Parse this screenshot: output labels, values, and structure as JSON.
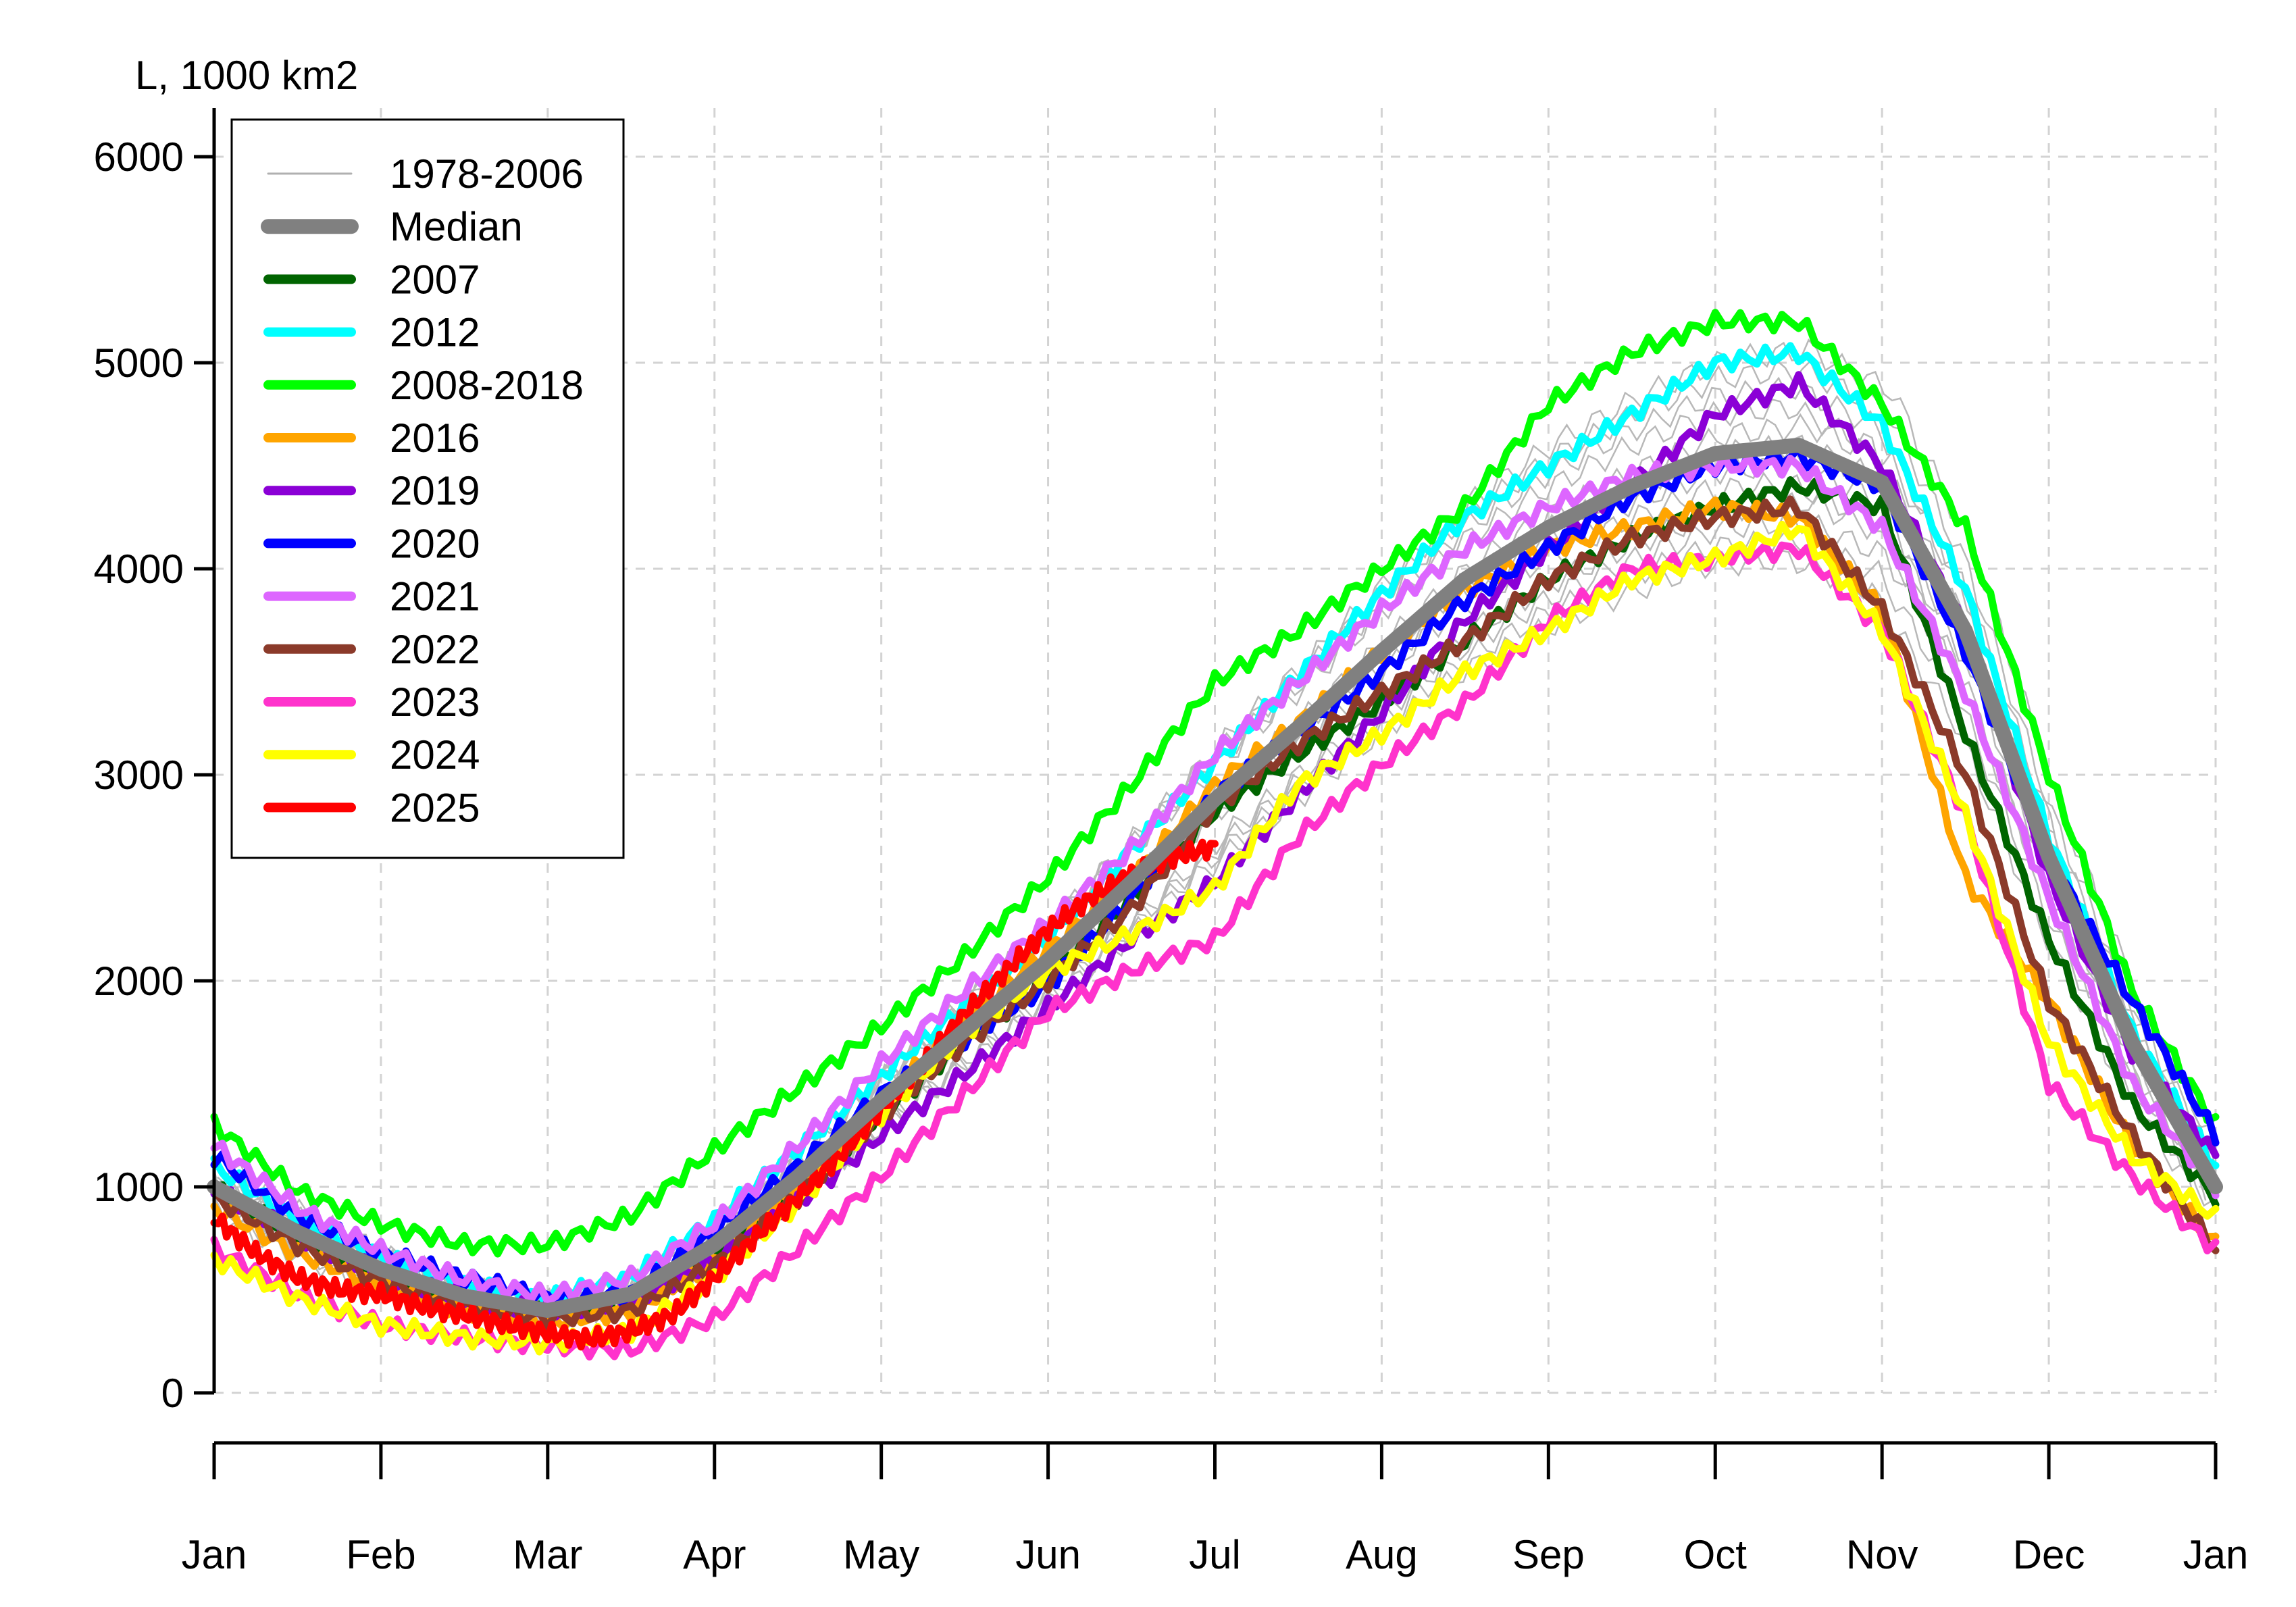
{
  "chart_data": {
    "type": "line",
    "ylabel": "L, 1000 km2",
    "ylim": [
      0,
      6000
    ],
    "yticks": [
      0,
      1000,
      2000,
      3000,
      4000,
      5000,
      6000
    ],
    "xticks": [
      "Jan",
      "Feb",
      "Mar",
      "Apr",
      "May",
      "Jun",
      "Jul",
      "Aug",
      "Sep",
      "Oct",
      "Nov",
      "Dec",
      "Jan"
    ],
    "grid": true,
    "legend_position": "top-left",
    "legend": [
      {
        "label": "1978-2006",
        "color": "#b0b0b0",
        "style": "thin"
      },
      {
        "label": "Median",
        "color": "#808080",
        "style": "thick"
      },
      {
        "label": "2007",
        "color": "#006400",
        "style": "medium"
      },
      {
        "label": "2012",
        "color": "#00ffff",
        "style": "medium"
      },
      {
        "label": "2008-2018",
        "color": "#00ff00",
        "style": "medium"
      },
      {
        "label": "2016",
        "color": "#ffa500",
        "style": "medium"
      },
      {
        "label": "2019",
        "color": "#8b00d6",
        "style": "medium"
      },
      {
        "label": "2020",
        "color": "#0000ff",
        "style": "medium"
      },
      {
        "label": "2021",
        "color": "#dd66ff",
        "style": "medium"
      },
      {
        "label": "2022",
        "color": "#8b3a2a",
        "style": "medium"
      },
      {
        "label": "2023",
        "color": "#ff33cc",
        "style": "medium"
      },
      {
        "label": "2024",
        "color": "#ffff00",
        "style": "medium"
      },
      {
        "label": "2025",
        "color": "#ff0000",
        "style": "medium"
      }
    ],
    "x_unit": "month (0 = Jan 1, 12 = next Jan 1)",
    "series": [
      {
        "name": "Median",
        "color": "#808080",
        "x": [
          0,
          0.5,
          1,
          1.5,
          2,
          2.5,
          3,
          3.5,
          4,
          4.5,
          5,
          5.5,
          6,
          6.5,
          7,
          7.5,
          8,
          8.5,
          9,
          9.5,
          10,
          10.5,
          11,
          11.5,
          12
        ],
        "values": [
          1000,
          780,
          600,
          470,
          400,
          480,
          720,
          1050,
          1420,
          1760,
          2100,
          2480,
          2880,
          3230,
          3600,
          3950,
          4200,
          4400,
          4560,
          4600,
          4420,
          3700,
          2600,
          1700,
          1000
        ]
      },
      {
        "name": "2007",
        "color": "#006400",
        "x": [
          0,
          0.5,
          1,
          1.5,
          2,
          2.5,
          3,
          3.5,
          4,
          4.5,
          5,
          5.5,
          6,
          6.5,
          7,
          7.5,
          8,
          8.5,
          9,
          9.5,
          10,
          10.5,
          11,
          11.5,
          12
        ],
        "values": [
          1000,
          760,
          570,
          440,
          380,
          430,
          650,
          980,
          1350,
          1700,
          2020,
          2400,
          2820,
          3100,
          3350,
          3650,
          3950,
          4150,
          4300,
          4400,
          4300,
          3200,
          2200,
          1400,
          950
        ]
      },
      {
        "name": "2012",
        "color": "#00ffff",
        "x": [
          0,
          0.5,
          1,
          1.5,
          2,
          2.5,
          3,
          3.5,
          4,
          4.5,
          5,
          5.5,
          6,
          6.5,
          7,
          7.5,
          8,
          8.5,
          9,
          9.5,
          10,
          10.5,
          11,
          11.5,
          12
        ],
        "values": [
          1100,
          840,
          660,
          520,
          460,
          560,
          840,
          1180,
          1540,
          1880,
          2200,
          2640,
          3060,
          3480,
          3880,
          4250,
          4500,
          4750,
          5000,
          5050,
          4700,
          3900,
          2700,
          1750,
          1100
        ]
      },
      {
        "name": "2008-2018",
        "color": "#00ff00",
        "x": [
          0,
          0.5,
          1,
          1.5,
          2,
          2.5,
          3,
          3.5,
          4,
          4.5,
          5,
          5.5,
          6,
          6.5,
          7,
          7.5,
          8,
          8.5,
          9,
          9.5,
          10,
          10.5,
          11,
          11.5,
          12
        ],
        "values": [
          1300,
          980,
          820,
          720,
          720,
          860,
          1180,
          1480,
          1780,
          2120,
          2500,
          2950,
          3450,
          3700,
          4000,
          4300,
          4800,
          5050,
          5200,
          5200,
          4800,
          4200,
          3000,
          1950,
          1300
        ]
      },
      {
        "name": "2016",
        "color": "#ffa500",
        "x": [
          0,
          0.5,
          1,
          1.5,
          2,
          2.5,
          3,
          3.5,
          4,
          4.5,
          5,
          5.5,
          6,
          6.5,
          7,
          7.5,
          8,
          8.5,
          9,
          9.5,
          10,
          10.5,
          11,
          11.5,
          12
        ],
        "values": [
          900,
          680,
          520,
          400,
          340,
          400,
          640,
          1010,
          1420,
          1800,
          2150,
          2500,
          2950,
          3250,
          3600,
          3900,
          4100,
          4200,
          4300,
          4250,
          3800,
          2500,
          1900,
          1200,
          720
        ]
      },
      {
        "name": "2019",
        "color": "#8b00d6",
        "x": [
          0,
          0.5,
          1,
          1.5,
          2,
          2.5,
          3,
          3.5,
          4,
          4.5,
          5,
          5.5,
          6,
          6.5,
          7,
          7.5,
          8,
          8.5,
          9,
          9.5,
          10,
          10.5,
          11,
          11.5,
          12
        ],
        "values": [
          1000,
          760,
          580,
          460,
          400,
          450,
          640,
          920,
          1250,
          1550,
          1870,
          2200,
          2480,
          2900,
          3300,
          3750,
          4100,
          4400,
          4750,
          4900,
          4500,
          3700,
          2500,
          1650,
          1150
        ]
      },
      {
        "name": "2020",
        "color": "#0000ff",
        "x": [
          0,
          0.5,
          1,
          1.5,
          2,
          2.5,
          3,
          3.5,
          4,
          4.5,
          5,
          5.5,
          6,
          6.5,
          7,
          7.5,
          8,
          8.5,
          9,
          9.5,
          10,
          10.5,
          11,
          11.5,
          12
        ],
        "values": [
          1150,
          860,
          680,
          560,
          460,
          480,
          780,
          1100,
          1450,
          1720,
          1980,
          2400,
          2900,
          3200,
          3500,
          3850,
          4100,
          4350,
          4500,
          4550,
          4400,
          3600,
          2600,
          1900,
          1250
        ]
      },
      {
        "name": "2021",
        "color": "#dd66ff",
        "x": [
          0,
          0.5,
          1,
          1.5,
          2,
          2.5,
          3,
          3.5,
          4,
          4.5,
          5,
          5.5,
          6,
          6.5,
          7,
          7.5,
          8,
          8.5,
          9,
          9.5,
          10,
          10.5,
          11,
          11.5,
          12
        ],
        "values": [
          1200,
          900,
          690,
          550,
          470,
          560,
          820,
          1200,
          1600,
          1950,
          2280,
          2640,
          3100,
          3450,
          3800,
          4100,
          4300,
          4450,
          4500,
          4500,
          4200,
          3400,
          2400,
          1500,
          1000
        ]
      },
      {
        "name": "2022",
        "color": "#8b3a2a",
        "x": [
          0,
          0.5,
          1,
          1.5,
          2,
          2.5,
          3,
          3.5,
          4,
          4.5,
          5,
          5.5,
          6,
          6.5,
          7,
          7.5,
          8,
          8.5,
          9,
          9.5,
          10,
          10.5,
          11,
          11.5,
          12
        ],
        "values": [
          950,
          720,
          540,
          420,
          360,
          400,
          620,
          950,
          1350,
          1700,
          2000,
          2350,
          2850,
          3150,
          3400,
          3650,
          3950,
          4150,
          4250,
          4300,
          3800,
          3000,
          1900,
          1250,
          700
        ]
      },
      {
        "name": "2023",
        "color": "#ff33cc",
        "x": [
          0,
          0.5,
          1,
          1.5,
          2,
          2.5,
          3,
          3.5,
          4,
          4.5,
          5,
          5.5,
          6,
          6.5,
          7,
          7.5,
          8,
          8.5,
          9,
          9.5,
          10,
          10.5,
          11,
          11.5,
          12
        ],
        "values": [
          700,
          480,
          330,
          270,
          230,
          210,
          360,
          700,
          1050,
          1450,
          1850,
          2050,
          2200,
          2700,
          3050,
          3350,
          3750,
          4000,
          4050,
          4100,
          3700,
          2800,
          1500,
          1050,
          700
        ]
      },
      {
        "name": "2024",
        "color": "#ffff00",
        "x": [
          0,
          0.5,
          1,
          1.5,
          2,
          2.5,
          3,
          3.5,
          4,
          4.5,
          5,
          5.5,
          6,
          6.5,
          7,
          7.5,
          8,
          8.5,
          9,
          9.5,
          10,
          10.5,
          11,
          11.5,
          12
        ],
        "values": [
          650,
          460,
          330,
          270,
          240,
          300,
          560,
          920,
          1350,
          1750,
          2050,
          2230,
          2450,
          2950,
          3200,
          3500,
          3700,
          3950,
          4050,
          4200,
          3700,
          2800,
          1700,
          1150,
          850
        ]
      },
      {
        "name": "2025",
        "color": "#ff0000",
        "x": [
          0,
          0.25,
          0.5,
          0.75,
          1,
          1.25,
          1.5,
          1.75,
          2,
          2.25,
          2.5,
          2.75,
          3,
          3.25,
          3.5,
          3.75,
          4,
          4.25,
          4.5,
          4.75,
          5,
          5.25,
          5.5,
          5.75,
          6
        ],
        "values": [
          850,
          680,
          560,
          500,
          480,
          420,
          380,
          330,
          290,
          260,
          300,
          380,
          560,
          760,
          950,
          1150,
          1380,
          1600,
          1840,
          2050,
          2250,
          2400,
          2520,
          2600,
          2650
        ]
      }
    ]
  }
}
